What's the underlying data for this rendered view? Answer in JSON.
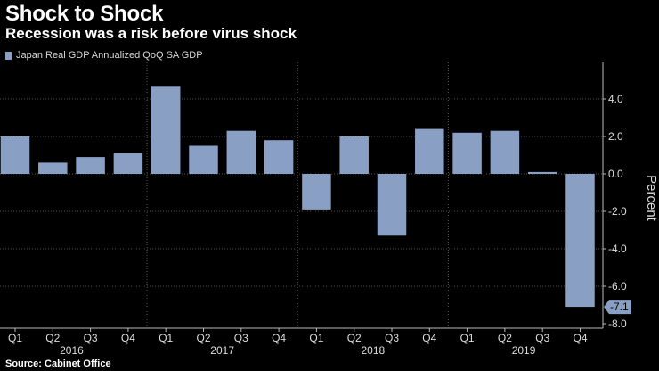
{
  "title": "Shock to Shock",
  "subtitle": "Recession was a risk before virus shock",
  "source": "Source: Cabinet Office",
  "chart_data": {
    "type": "bar",
    "title": "Shock to Shock",
    "legend": [
      "Japan Real GDP Annualized QoQ SA GDP"
    ],
    "legend_position": "top-left",
    "ylabel": "Percent",
    "xlabel": "",
    "ylim": [
      -8,
      5.5
    ],
    "yticks": [
      -8,
      -6,
      -4,
      -2,
      0,
      2,
      4
    ],
    "ytick_labels": [
      "-8.0",
      "-6.0",
      "-4.0",
      "-2.0",
      "0.0",
      "2.0",
      "4.0"
    ],
    "categories": [
      "Q1",
      "Q2",
      "Q3",
      "Q4",
      "Q1",
      "Q2",
      "Q3",
      "Q4",
      "Q1",
      "Q2",
      "Q3",
      "Q4",
      "Q1",
      "Q2",
      "Q3",
      "Q4"
    ],
    "years": [
      {
        "label": "2016",
        "start": 0,
        "end": 3
      },
      {
        "label": "2017",
        "start": 4,
        "end": 7
      },
      {
        "label": "2018",
        "start": 8,
        "end": 11
      },
      {
        "label": "2019",
        "start": 12,
        "end": 15
      }
    ],
    "values": [
      2.0,
      0.6,
      0.9,
      1.1,
      4.7,
      1.5,
      2.3,
      1.8,
      -1.9,
      2.0,
      -3.3,
      2.4,
      2.2,
      2.3,
      0.1,
      -7.1
    ],
    "last_value_label": "-7.1",
    "bar_color": "#8a9fc4"
  }
}
